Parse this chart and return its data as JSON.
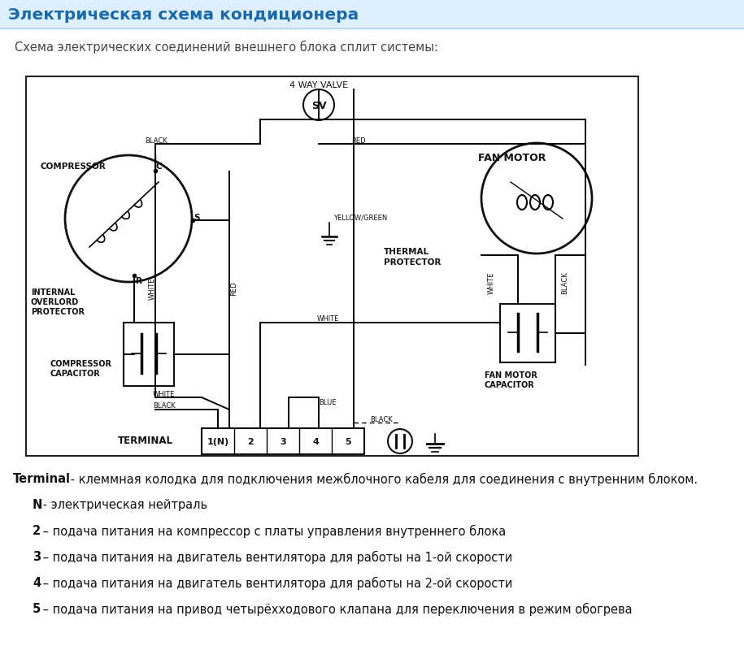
{
  "title": "Электрическая схема кондиционера",
  "subtitle": "Схема электрических соединений внешнего блока сплит системы:",
  "title_color": "#1a6aaa",
  "title_bg": "#ddeeff",
  "bg_color": "#ffffff",
  "legend_items": [
    {
      "bold": "Terminal",
      "sep": " - ",
      "normal": "клеммная колодка для подключения межблочного кабеля для соединения с внутренним блоком."
    },
    {
      "bold": "N",
      "sep": " - ",
      "normal": "электрическая нейтраль"
    },
    {
      "bold": "2",
      "sep": " – ",
      "normal": "подача питания на компрессор с платы управления внутреннего блока"
    },
    {
      "bold": "3",
      "sep": " – ",
      "normal": "подача питания на двигатель вентилятора для работы на 1-ой скорости"
    },
    {
      "bold": "4",
      "sep": " – ",
      "normal": "подача питания на двигатель вентилятора для работы на 2-ой скорости"
    },
    {
      "bold": "5",
      "sep": " – ",
      "normal": "подача питания на привод четырёхходового клапана для переключения в режим обогрева"
    }
  ]
}
